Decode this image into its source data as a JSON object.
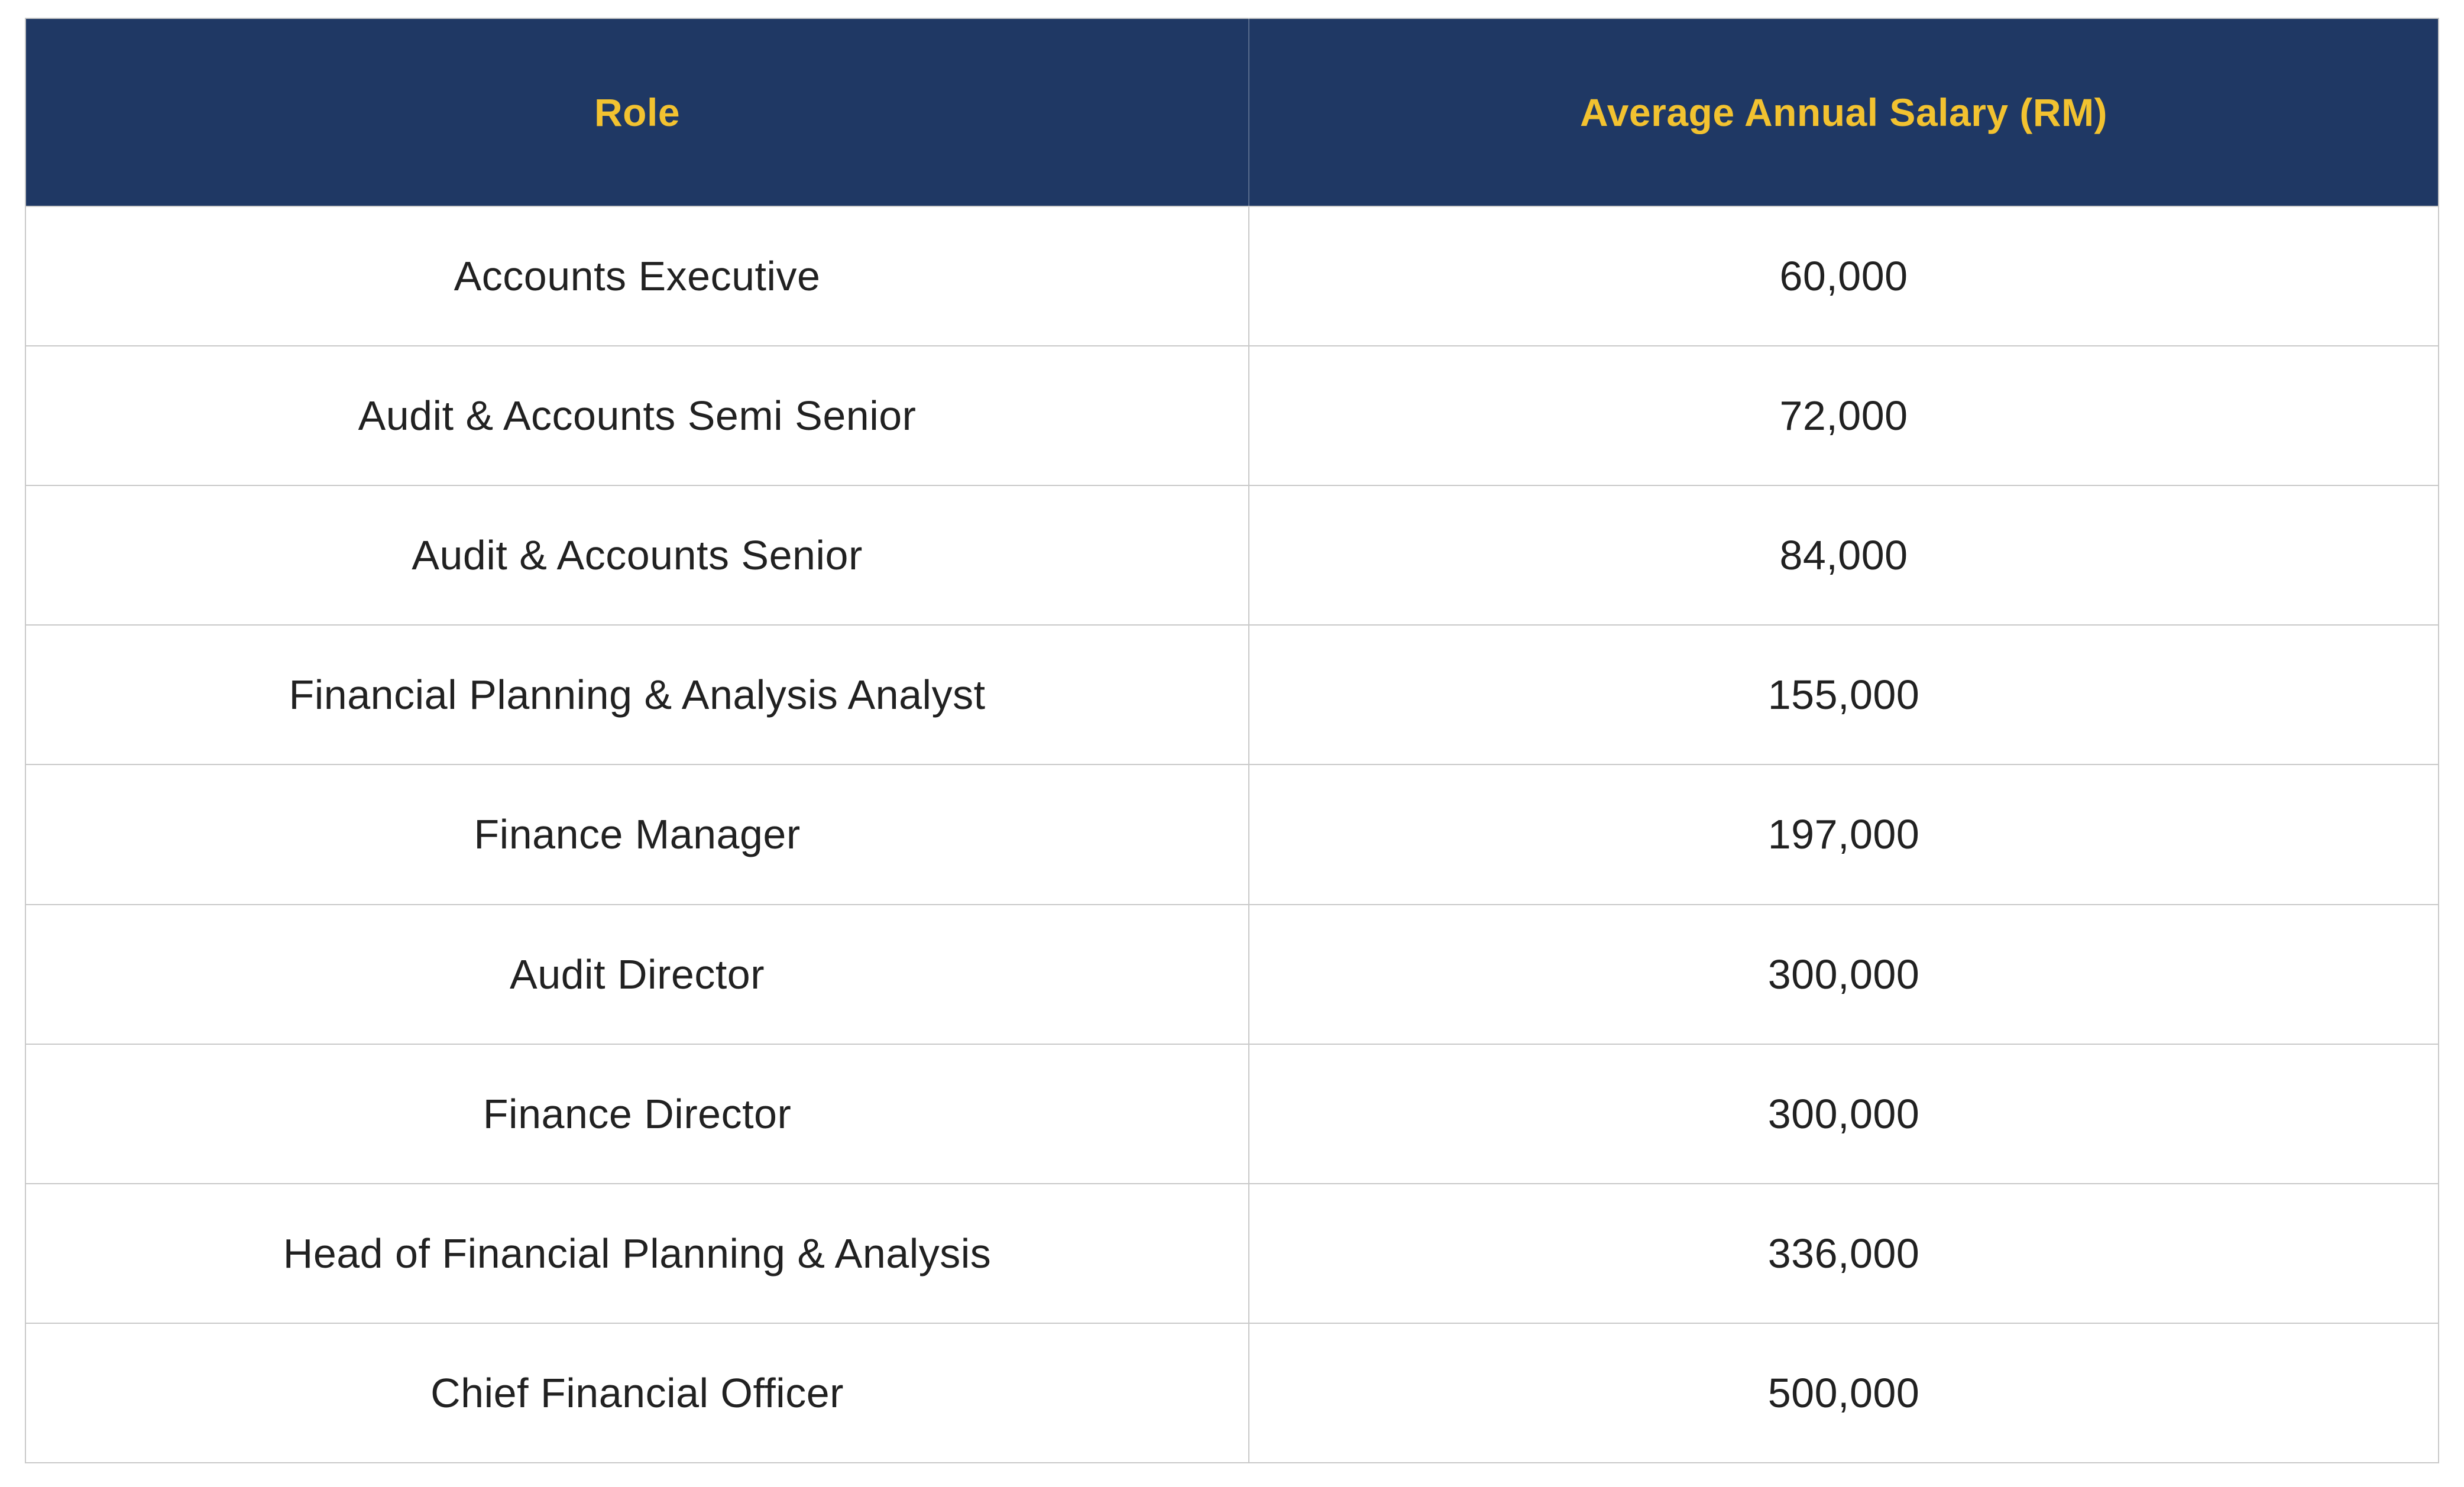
{
  "table": {
    "columns": [
      "Role",
      "Average Annual Salary (RM)"
    ],
    "rows": [
      {
        "role": "Accounts Executive",
        "salary": "60,000"
      },
      {
        "role": "Audit & Accounts Semi Senior",
        "salary": "72,000"
      },
      {
        "role": "Audit & Accounts Senior",
        "salary": "84,000"
      },
      {
        "role": "Financial Planning & Analysis Analyst",
        "salary": "155,000"
      },
      {
        "role": "Finance Manager",
        "salary": "197,000"
      },
      {
        "role": "Audit Director",
        "salary": "300,000"
      },
      {
        "role": "Finance Director",
        "salary": "300,000"
      },
      {
        "role": "Head of Financial Planning & Analysis",
        "salary": "336,000"
      },
      {
        "role": "Chief Financial Officer",
        "salary": "500,000"
      }
    ]
  },
  "colors": {
    "header_bg": "#1f3864",
    "header_text": "#f2c230",
    "body_text": "#212121",
    "border": "#c9c9c9"
  },
  "chart_data": {
    "type": "table",
    "title": "",
    "columns": [
      "Role",
      "Average Annual Salary (RM)"
    ],
    "rows": [
      [
        "Accounts Executive",
        60000
      ],
      [
        "Audit & Accounts Semi Senior",
        72000
      ],
      [
        "Audit & Accounts Senior",
        84000
      ],
      [
        "Financial Planning & Analysis Analyst",
        155000
      ],
      [
        "Finance Manager",
        197000
      ],
      [
        "Audit Director",
        300000
      ],
      [
        "Finance Director",
        300000
      ],
      [
        "Head of Financial Planning & Analysis",
        336000
      ],
      [
        "Chief Financial Officer",
        500000
      ]
    ]
  }
}
